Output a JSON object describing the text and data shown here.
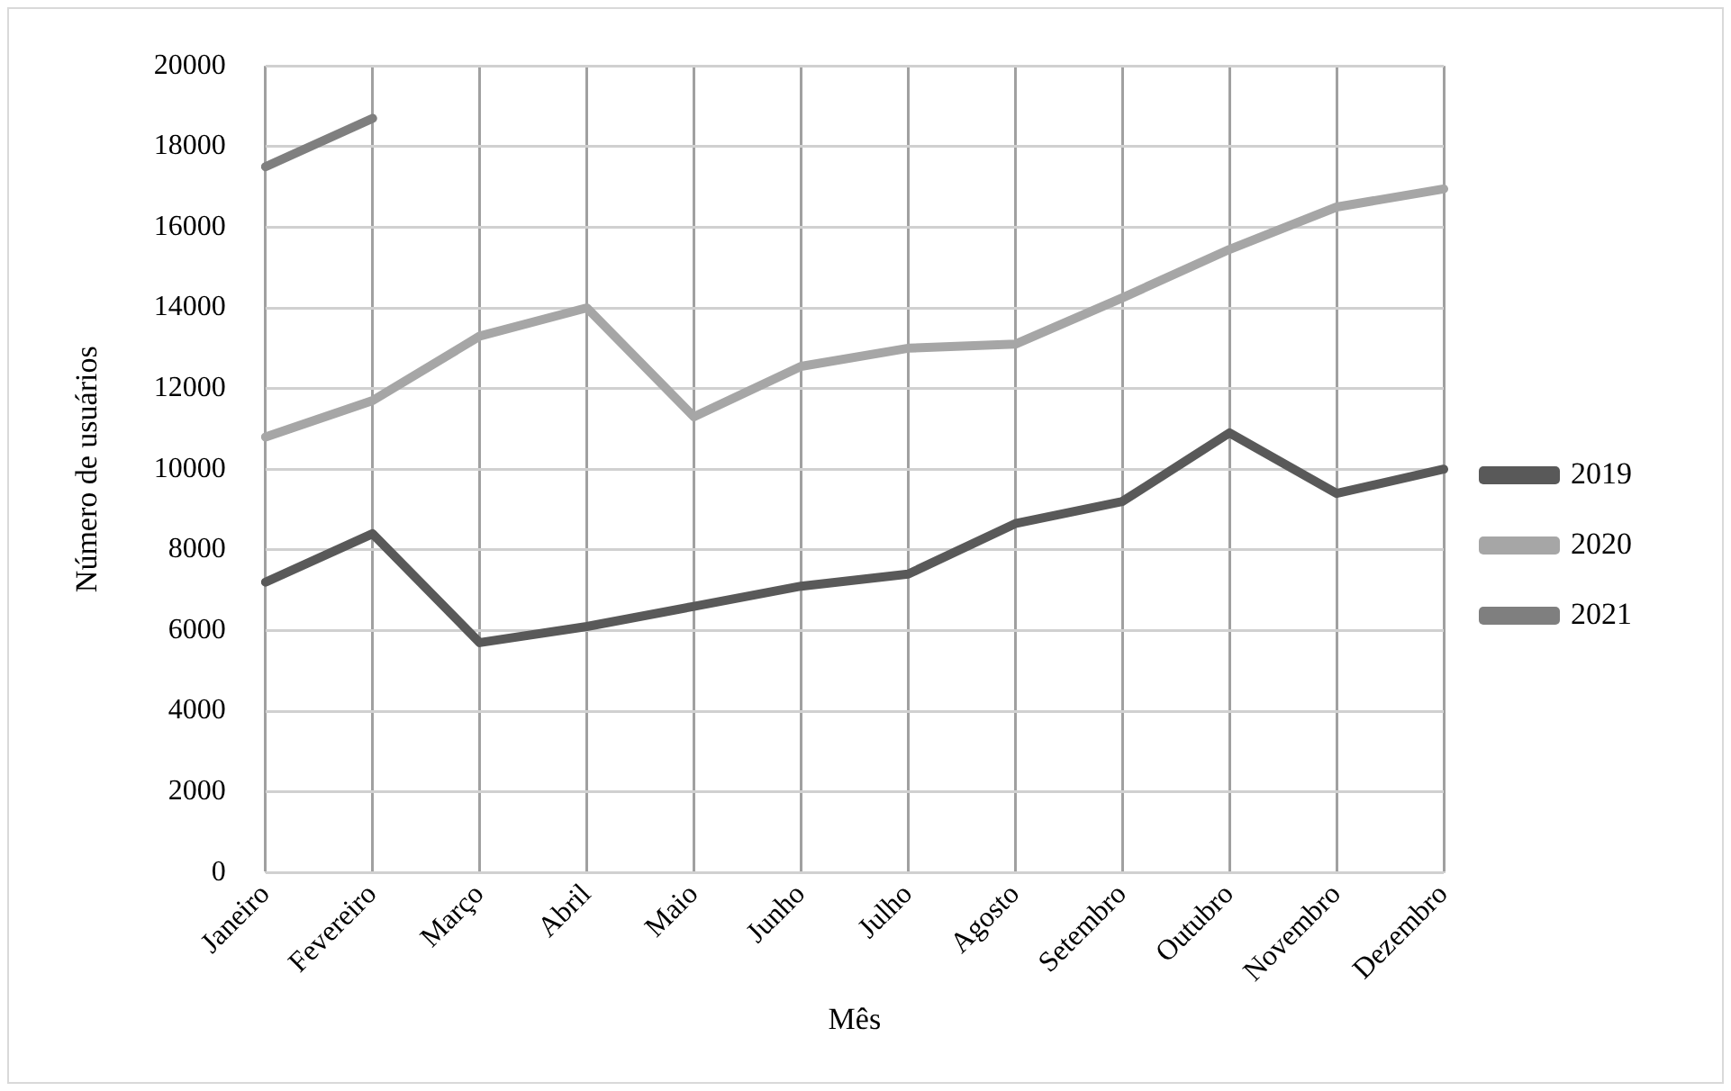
{
  "chart_data": {
    "type": "line",
    "xlabel": "Mês",
    "ylabel": "Número de usuários",
    "categories": [
      "Janeiro",
      "Fevereiro",
      "Março",
      "Abril",
      "Maio",
      "Junho",
      "Julho",
      "Agosto",
      "Setembro",
      "Outubro",
      "Novembro",
      "Dezembro"
    ],
    "series": [
      {
        "name": "2019",
        "color": "#595959",
        "values": [
          7200,
          8400,
          5700,
          6100,
          6600,
          7100,
          7400,
          8650,
          9200,
          10900,
          9400,
          10000
        ]
      },
      {
        "name": "2020",
        "color": "#a6a6a6",
        "values": [
          10800,
          11700,
          13300,
          14000,
          11300,
          12550,
          13000,
          13100,
          14250,
          15450,
          16500,
          16950
        ]
      },
      {
        "name": "2021",
        "color": "#7f7f7f",
        "values": [
          17500,
          18700,
          null,
          null,
          null,
          null,
          null,
          null,
          null,
          null,
          null,
          null
        ]
      }
    ],
    "ylim": [
      0,
      20000
    ],
    "yticks": [
      0,
      2000,
      4000,
      6000,
      8000,
      10000,
      12000,
      14000,
      16000,
      18000,
      20000
    ],
    "grid": true,
    "legend": "right",
    "marker": "none",
    "line_style": "solid"
  }
}
